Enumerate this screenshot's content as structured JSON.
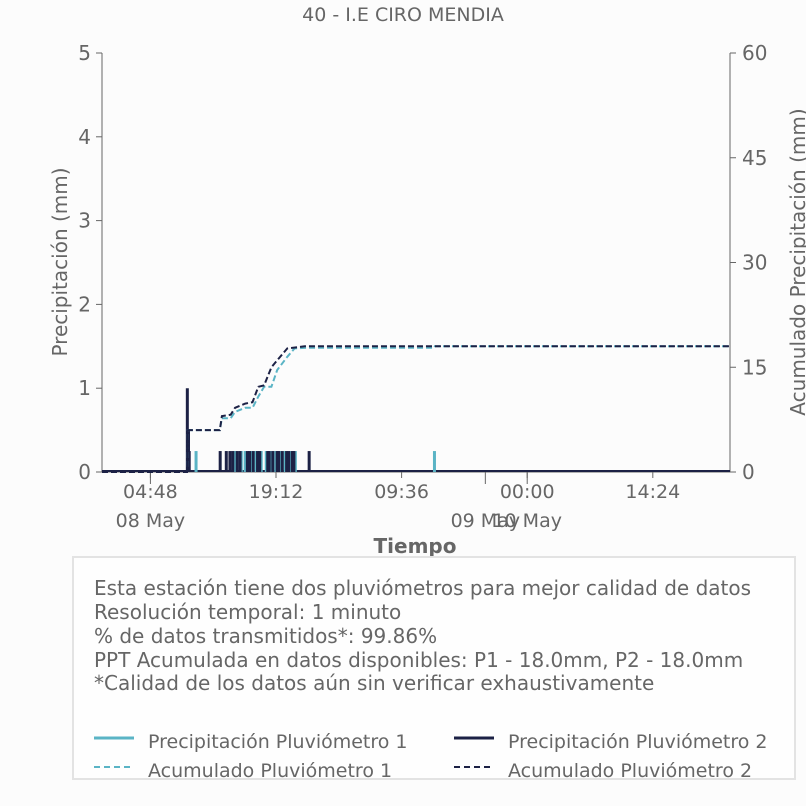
{
  "title": "40 - I.E CIRO MENDIA",
  "colors": {
    "p1": "#5ab4c5",
    "p2": "#1c2145",
    "axis": "#666666",
    "text": "#666666"
  },
  "chart_data": {
    "type": "line",
    "title": "40 - I.E CIRO MENDIA",
    "xlabel": "Tiempo",
    "ylabel": "Precipitación (mm)",
    "y2label": "Acumulado Precipitación (mm)",
    "xlim": [
      "2025-05-07T23:15",
      "2025-05-10T23:15"
    ],
    "ylim": [
      0,
      5
    ],
    "y2lim": [
      0,
      60
    ],
    "yticks": [
      0,
      1,
      2,
      3,
      4,
      5
    ],
    "y2ticks": [
      0,
      15,
      30,
      45,
      60
    ],
    "xticks": [
      {
        "t": "2025-05-08T04:48",
        "label": "04:48",
        "date": "08 May"
      },
      {
        "t": "2025-05-08T19:12",
        "label": "19:12",
        "date": ""
      },
      {
        "t": "2025-05-09T09:36",
        "label": "09:36",
        "date": ""
      },
      {
        "t": "2025-05-10T00:00",
        "label": "00:00",
        "date": ""
      },
      {
        "t": "2025-05-10T14:24",
        "label": "14:24",
        "date": ""
      }
    ],
    "date_labels": [
      {
        "t": "2025-05-08T04:48",
        "label": "08 May"
      },
      {
        "t": "2025-05-09T19:12",
        "label": "09 May"
      },
      {
        "t": "2025-05-10T00:00",
        "label": "10 May"
      }
    ],
    "grid": false,
    "series": [
      {
        "name": "Precipitación Pluviómetro 1",
        "kind": "bars",
        "axis": "left",
        "points": [
          [
            "2025-05-08T10:02",
            0.25
          ],
          [
            "2025-05-08T14:30",
            0.25
          ],
          [
            "2025-05-08T15:13",
            0.25
          ],
          [
            "2025-05-08T15:40",
            0.25
          ],
          [
            "2025-05-08T16:20",
            0.25
          ],
          [
            "2025-05-08T16:55",
            0.25
          ],
          [
            "2025-05-08T17:30",
            0.25
          ],
          [
            "2025-05-08T18:05",
            0.25
          ],
          [
            "2025-05-08T18:35",
            0.25
          ],
          [
            "2025-05-08T19:10",
            0.25
          ],
          [
            "2025-05-08T19:40",
            0.25
          ],
          [
            "2025-05-08T20:15",
            0.25
          ],
          [
            "2025-05-08T20:50",
            0.25
          ],
          [
            "2025-05-08T21:25",
            0.25
          ],
          [
            "2025-05-09T13:22",
            0.25
          ]
        ]
      },
      {
        "name": "Precipitación Pluviómetro 2",
        "kind": "bars",
        "axis": "left",
        "points": [
          [
            "2025-05-08T09:02",
            1.0
          ],
          [
            "2025-05-08T09:10",
            0.5
          ],
          [
            "2025-05-08T09:15",
            0.25
          ],
          [
            "2025-05-08T12:48",
            0.25
          ],
          [
            "2025-05-08T13:30",
            0.25
          ],
          [
            "2025-05-08T13:55",
            0.25
          ],
          [
            "2025-05-08T14:15",
            0.25
          ],
          [
            "2025-05-08T14:45",
            0.25
          ],
          [
            "2025-05-08T15:05",
            0.25
          ],
          [
            "2025-05-08T15:55",
            0.25
          ],
          [
            "2025-05-08T16:10",
            0.25
          ],
          [
            "2025-05-08T16:35",
            0.25
          ],
          [
            "2025-05-08T17:05",
            0.25
          ],
          [
            "2025-05-08T17:20",
            0.25
          ],
          [
            "2025-05-08T18:15",
            0.25
          ],
          [
            "2025-05-08T18:25",
            0.25
          ],
          [
            "2025-05-08T18:50",
            0.25
          ],
          [
            "2025-05-08T19:20",
            0.25
          ],
          [
            "2025-05-08T19:30",
            0.25
          ],
          [
            "2025-05-08T19:55",
            0.25
          ],
          [
            "2025-05-08T20:25",
            0.25
          ],
          [
            "2025-05-08T20:40",
            0.25
          ],
          [
            "2025-05-08T21:05",
            0.25
          ],
          [
            "2025-05-08T21:15",
            0.25
          ],
          [
            "2025-05-08T23:00",
            0.25
          ]
        ]
      },
      {
        "name": "Acumulado Pluviómetro 1",
        "kind": "line",
        "axis": "right",
        "dashed": true,
        "points": [
          [
            "2025-05-07T23:15",
            0
          ],
          [
            "2025-05-08T09:00",
            0
          ],
          [
            "2025-05-08T09:05",
            6
          ],
          [
            "2025-05-08T12:45",
            6
          ],
          [
            "2025-05-08T13:00",
            7.7
          ],
          [
            "2025-05-08T14:00",
            7.7
          ],
          [
            "2025-05-08T14:30",
            8.6
          ],
          [
            "2025-05-08T15:40",
            9.2
          ],
          [
            "2025-05-08T16:30",
            9.2
          ],
          [
            "2025-05-08T17:10",
            10.8
          ],
          [
            "2025-05-08T17:50",
            12.2
          ],
          [
            "2025-05-08T18:40",
            12.2
          ],
          [
            "2025-05-08T19:20",
            14.6
          ],
          [
            "2025-05-08T20:30",
            16.5
          ],
          [
            "2025-05-08T21:20",
            17.7
          ],
          [
            "2025-05-08T22:50",
            17.8
          ],
          [
            "2025-05-09T13:22",
            17.8
          ],
          [
            "2025-05-09T13:25",
            18.0
          ],
          [
            "2025-05-10T23:15",
            18.0
          ]
        ]
      },
      {
        "name": "Acumulado Pluviómetro 2",
        "kind": "line",
        "axis": "right",
        "dashed": true,
        "points": [
          [
            "2025-05-07T23:15",
            0
          ],
          [
            "2025-05-08T09:00",
            0
          ],
          [
            "2025-05-08T09:05",
            6
          ],
          [
            "2025-05-08T12:45",
            6
          ],
          [
            "2025-05-08T13:00",
            8.0
          ],
          [
            "2025-05-08T14:00",
            8.2
          ],
          [
            "2025-05-08T14:30",
            9.2
          ],
          [
            "2025-05-08T15:40",
            9.8
          ],
          [
            "2025-05-08T16:30",
            10.0
          ],
          [
            "2025-05-08T17:10",
            12.2
          ],
          [
            "2025-05-08T17:50",
            12.4
          ],
          [
            "2025-05-08T18:40",
            15.0
          ],
          [
            "2025-05-08T19:20",
            16.0
          ],
          [
            "2025-05-08T20:30",
            17.7
          ],
          [
            "2025-05-08T22:30",
            18.0
          ],
          [
            "2025-05-10T23:15",
            18.0
          ]
        ]
      }
    ]
  },
  "info": {
    "line1": "Esta estación tiene dos pluviómetros para mejor calidad de datos",
    "line2": "Resolución temporal: 1 minuto",
    "line3": "% de datos transmitidos*: 99.86%",
    "line4": "PPT Acumulada en datos disponibles: P1 - 18.0mm, P2 - 18.0mm",
    "line5": "*Calidad de los datos aún sin verificar exhaustivamente"
  },
  "legend": {
    "p1_bar": "Precipitación Pluviómetro 1",
    "p2_bar": "Precipitación Pluviómetro 2",
    "p1_acc": "Acumulado Pluviómetro 1",
    "p2_acc": "Acumulado Pluviómetro 2"
  }
}
